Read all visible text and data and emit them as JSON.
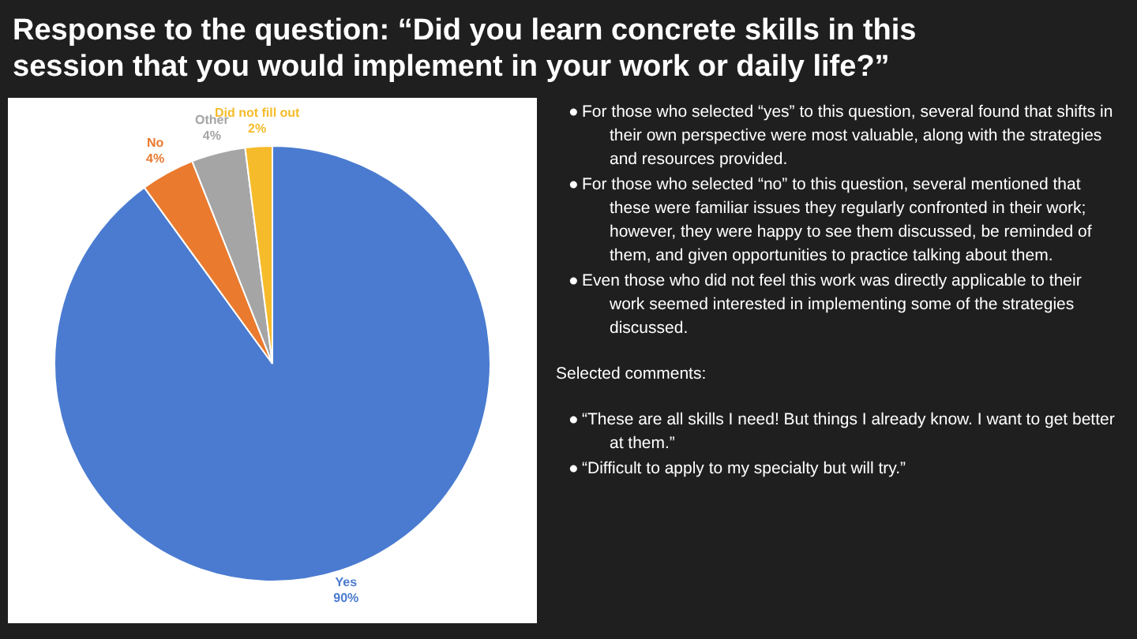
{
  "chart_data": {
    "type": "pie",
    "title": "Response to the question: “Did you learn concrete skills in this session that you would implement in your work or daily life?”",
    "categories": [
      "Yes",
      "No",
      "Other",
      "Did not fill out"
    ],
    "values": [
      90,
      4,
      4,
      2
    ],
    "colors": [
      "#4a7bd0",
      "#ea7a2e",
      "#a5a5a5",
      "#f6bb2a"
    ],
    "value_labels": [
      "90%",
      "4%",
      "4%",
      "2%"
    ],
    "annotations": [
      "●\tFor those who selected “yes” to this question, several found that shifts in their own perspective were most valuable, along with the strategies and resources provided.",
      "●\tFor those who selected “no” to this question, several mentioned that these were familiar issues they regularly confronted in their work; however, they were happy to see them discussed, be reminded of them, and given opportunities to practice talking about them.",
      "●\tEven those who did not feel this work was directly applicable to their work seemed interested in implementing some of the strategies discussed.",
      "Selected comments:",
      "●\t“These are all skills I need! But things I already know. I want to get better at them.”",
      "●\t“Difficult to apply to my specialty but will try.”"
    ]
  }
}
